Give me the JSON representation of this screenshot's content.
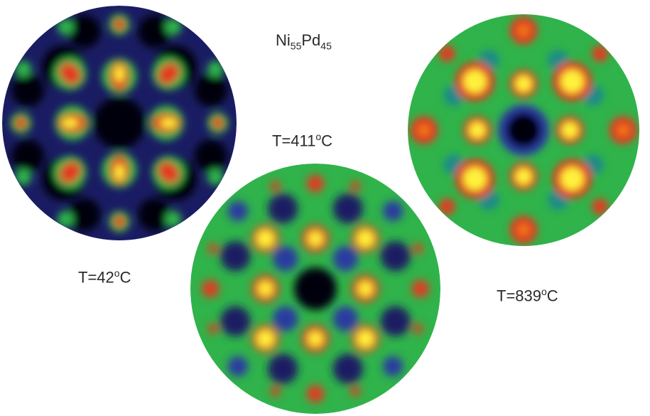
{
  "title": {
    "element": "Ni",
    "element_sub": "55",
    "element2": "Pd",
    "element2_sub": "45"
  },
  "panels": [
    {
      "label_prefix": "T=42",
      "label_sup": "o",
      "label_suffix": "C"
    },
    {
      "label_prefix": "T=411",
      "label_sup": "o",
      "label_suffix": "C"
    },
    {
      "label_prefix": "T=839",
      "label_sup": "o",
      "label_suffix": "C"
    }
  ],
  "colors": {
    "black": "#050510",
    "navy": "#1a1c63",
    "blue": "#2a3aa0",
    "teal": "#1f8a8a",
    "green": "#2fb34a",
    "red": "#e33a20",
    "orange": "#f07a18",
    "yellow": "#fff23a"
  }
}
